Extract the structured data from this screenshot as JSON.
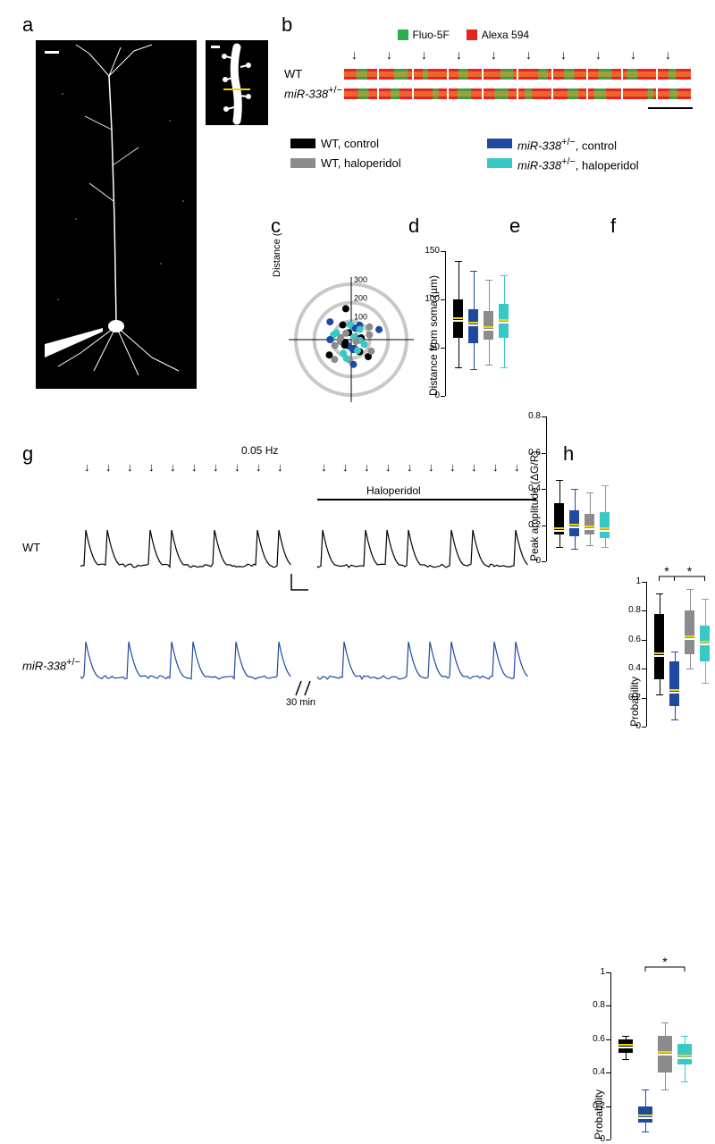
{
  "labels": {
    "a": "a",
    "b": "b",
    "c": "c",
    "d": "d",
    "e": "e",
    "f": "f",
    "g": "g",
    "h": "h"
  },
  "panel_b": {
    "fluo_label": "Fluo-5F",
    "alexa_label": "Alexa 594",
    "fluo_color": "#2bb04a",
    "alexa_color": "#e4251e",
    "row1_label": "WT",
    "row2_label_html": "miR-338",
    "row2_sup": "+/−"
  },
  "legend": {
    "items": [
      {
        "color": "#000000",
        "text": "WT, control"
      },
      {
        "color": "#8c8c8c",
        "text": "WT, haloperidol"
      },
      {
        "color": "#1f4aa0",
        "text_html": "miR-338",
        "sup": "+/−",
        "suffix": ", control"
      },
      {
        "color": "#38c8c6",
        "text_html": "miR-338",
        "sup": "+/−",
        "suffix": ", haloperidol"
      }
    ]
  },
  "panel_c": {
    "ylabel": "Distance (µm)",
    "rings": [
      100,
      200,
      300
    ],
    "points": [
      {
        "r": 55,
        "th": 10,
        "c": "#000000"
      },
      {
        "r": 120,
        "th": 35,
        "c": "#8c8c8c"
      },
      {
        "r": 90,
        "th": 60,
        "c": "#1f4aa0"
      },
      {
        "r": 70,
        "th": 85,
        "c": "#38c8c6"
      },
      {
        "r": 40,
        "th": 110,
        "c": "#000000"
      },
      {
        "r": 150,
        "th": 140,
        "c": "#1f4aa0"
      },
      {
        "r": 100,
        "th": 165,
        "c": "#38c8c6"
      },
      {
        "r": 60,
        "th": 190,
        "c": "#8c8c8c"
      },
      {
        "r": 30,
        "th": 5,
        "c": "#1f4aa0"
      },
      {
        "r": 145,
        "th": 215,
        "c": "#000000"
      },
      {
        "r": 85,
        "th": 240,
        "c": "#38c8c6"
      },
      {
        "r": 110,
        "th": 265,
        "c": "#8c8c8c"
      },
      {
        "r": 50,
        "th": 290,
        "c": "#1f4aa0"
      },
      {
        "r": 130,
        "th": 315,
        "c": "#000000"
      },
      {
        "r": 75,
        "th": 340,
        "c": "#38c8c6"
      },
      {
        "r": 95,
        "th": 200,
        "c": "#8c8c8c"
      },
      {
        "r": 20,
        "th": 45,
        "c": "#38c8c6"
      },
      {
        "r": 65,
        "th": 70,
        "c": "#1f4aa0"
      },
      {
        "r": 170,
        "th": 100,
        "c": "#000000"
      },
      {
        "r": 45,
        "th": 130,
        "c": "#8c8c8c"
      },
      {
        "r": 88,
        "th": 155,
        "c": "#38c8c6"
      },
      {
        "r": 115,
        "th": 180,
        "c": "#1f4aa0"
      },
      {
        "r": 35,
        "th": 205,
        "c": "#000000"
      },
      {
        "r": 140,
        "th": 230,
        "c": "#8c8c8c"
      },
      {
        "r": 105,
        "th": 255,
        "c": "#38c8c6"
      },
      {
        "r": 55,
        "th": 280,
        "c": "#1f4aa0"
      },
      {
        "r": 80,
        "th": 305,
        "c": "#000000"
      },
      {
        "r": 125,
        "th": 330,
        "c": "#8c8c8c"
      },
      {
        "r": 48,
        "th": 355,
        "c": "#38c8c6"
      },
      {
        "r": 160,
        "th": 20,
        "c": "#1f4aa0"
      },
      {
        "r": 72,
        "th": 50,
        "c": "#38c8c6"
      },
      {
        "r": 92,
        "th": 120,
        "c": "#000000"
      },
      {
        "r": 58,
        "th": 170,
        "c": "#8c8c8c"
      },
      {
        "r": 38,
        "th": 250,
        "c": "#1f4aa0"
      },
      {
        "r": 68,
        "th": 300,
        "c": "#38c8c6"
      },
      {
        "r": 102,
        "th": 15,
        "c": "#8c8c8c"
      },
      {
        "r": 82,
        "th": 95,
        "c": "#38c8c6"
      },
      {
        "r": 46,
        "th": 220,
        "c": "#000000"
      },
      {
        "r": 135,
        "th": 275,
        "c": "#1f4aa0"
      },
      {
        "r": 28,
        "th": 340,
        "c": "#8c8c8c"
      }
    ]
  },
  "panel_d": {
    "ylabel": "Distance from soma (µm)",
    "ymin": 0,
    "ymax": 150,
    "yticks": [
      0,
      50,
      100,
      150
    ],
    "boxes": [
      {
        "c": "#000000",
        "q1": 60,
        "med": 80,
        "q3": 100,
        "lo": 30,
        "hi": 140
      },
      {
        "c": "#1f4aa0",
        "q1": 55,
        "med": 75,
        "q3": 90,
        "lo": 28,
        "hi": 130
      },
      {
        "c": "#8c8c8c",
        "q1": 58,
        "med": 70,
        "q3": 88,
        "lo": 32,
        "hi": 120
      },
      {
        "c": "#38c8c6",
        "q1": 60,
        "med": 78,
        "q3": 95,
        "lo": 30,
        "hi": 125
      }
    ]
  },
  "panel_e": {
    "ylabel": "Peak amplitude (ΔG/R)",
    "ymin": 0,
    "ymax": 0.8,
    "yticks": [
      0,
      0.2,
      0.4,
      0.6,
      0.8
    ],
    "boxes": [
      {
        "c": "#000000",
        "q1": 0.15,
        "med": 0.18,
        "q3": 0.32,
        "lo": 0.08,
        "hi": 0.45
      },
      {
        "c": "#1f4aa0",
        "q1": 0.14,
        "med": 0.2,
        "q3": 0.28,
        "lo": 0.07,
        "hi": 0.4
      },
      {
        "c": "#8c8c8c",
        "q1": 0.15,
        "med": 0.19,
        "q3": 0.26,
        "lo": 0.09,
        "hi": 0.38
      },
      {
        "c": "#38c8c6",
        "q1": 0.13,
        "med": 0.18,
        "q3": 0.27,
        "lo": 0.08,
        "hi": 0.42
      }
    ]
  },
  "panel_f": {
    "ylabel": "Probability",
    "ymin": 0,
    "ymax": 1.0,
    "yticks": [
      0,
      0.2,
      0.4,
      0.6,
      0.8,
      1.0
    ],
    "sig": [
      {
        "i": 0,
        "j": 1,
        "label": "*"
      },
      {
        "i": 1,
        "j": 3,
        "label": "*"
      }
    ],
    "boxes": [
      {
        "c": "#000000",
        "q1": 0.33,
        "med": 0.5,
        "q3": 0.78,
        "lo": 0.22,
        "hi": 0.92
      },
      {
        "c": "#1f4aa0",
        "q1": 0.14,
        "med": 0.25,
        "q3": 0.45,
        "lo": 0.05,
        "hi": 0.52
      },
      {
        "c": "#8c8c8c",
        "q1": 0.5,
        "med": 0.62,
        "q3": 0.8,
        "lo": 0.4,
        "hi": 0.95
      },
      {
        "c": "#38c8c6",
        "q1": 0.45,
        "med": 0.58,
        "q3": 0.7,
        "lo": 0.3,
        "hi": 0.88
      }
    ]
  },
  "panel_g": {
    "freq_label": "0.05 Hz",
    "halo_label": "Haloperidol",
    "wt_label": "WT",
    "mir_label": "miR-338",
    "mir_sup": "+/−",
    "time_label": "30 min",
    "wt_color": "#000000",
    "mir_color": "#1f4aa0",
    "n_arrows": 10,
    "wt_before": [
      1,
      1,
      0,
      1,
      1,
      0,
      1,
      0,
      1,
      1
    ],
    "wt_after": [
      1,
      0,
      1,
      1,
      1,
      0,
      1,
      1,
      0,
      1
    ],
    "mir_before": [
      1,
      0,
      1,
      0,
      1,
      1,
      0,
      1,
      0,
      1
    ],
    "mir_after": [
      0,
      1,
      0,
      0,
      1,
      1,
      1,
      0,
      1,
      1
    ]
  },
  "panel_h": {
    "ylabel": "Probability",
    "ymin": 0,
    "ymax": 1.0,
    "yticks": [
      0,
      0.2,
      0.4,
      0.6,
      0.8,
      1.0
    ],
    "sig": [
      {
        "i": 1,
        "j": 3,
        "label": "*"
      }
    ],
    "boxes": [
      {
        "c": "#000000",
        "q1": 0.52,
        "med": 0.56,
        "q3": 0.6,
        "lo": 0.48,
        "hi": 0.62
      },
      {
        "c": "#1f4aa0",
        "q1": 0.1,
        "med": 0.14,
        "q3": 0.2,
        "lo": 0.05,
        "hi": 0.3
      },
      {
        "c": "#8c8c8c",
        "q1": 0.4,
        "med": 0.52,
        "q3": 0.62,
        "lo": 0.3,
        "hi": 0.7
      },
      {
        "c": "#38c8c6",
        "q1": 0.45,
        "med": 0.5,
        "q3": 0.57,
        "lo": 0.35,
        "hi": 0.62
      }
    ]
  }
}
